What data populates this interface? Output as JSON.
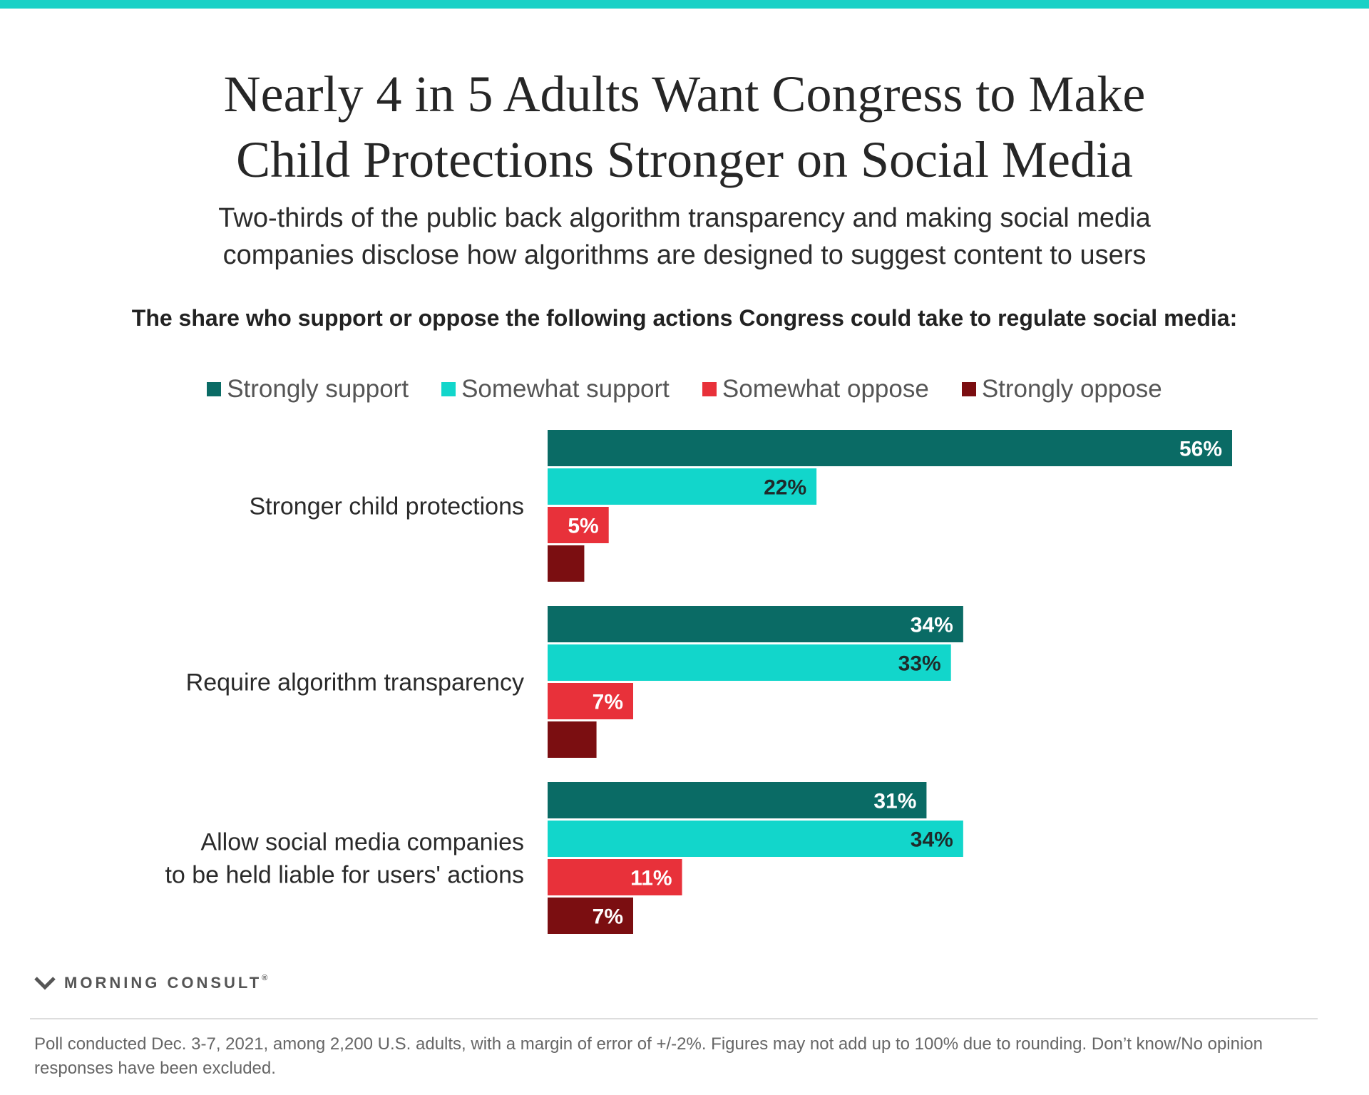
{
  "colors": {
    "top_bar": "#19d1c6",
    "strongly_support": "#0a6b65",
    "somewhat_support": "#12d6cb",
    "somewhat_oppose": "#e8313a",
    "strongly_oppose": "#7b0e11"
  },
  "header": {
    "title_line1": "Nearly 4 in 5 Adults Want Congress to Make",
    "title_line2": "Child Protections Stronger on Social Media",
    "subtitle_line1": "Two-thirds of the public back algorithm transparency and making social media",
    "subtitle_line2": "companies disclose how algorithms are designed to suggest content to users",
    "question": "The share who support or oppose the following actions Congress could take to regulate social media:"
  },
  "chart_data": {
    "type": "bar",
    "orientation": "horizontal",
    "unit": "%",
    "categories": [
      "Stronger child protections",
      "Require algorithm transparency",
      "Allow social media companies to be held liable for users' actions"
    ],
    "category_lines": [
      [
        "Stronger child protections"
      ],
      [
        "Require algorithm transparency"
      ],
      [
        "Allow social media companies",
        "to be held liable for users' actions"
      ]
    ],
    "series": [
      {
        "name": "Strongly support",
        "color": "#0a6b65",
        "label_color": "#ffffff",
        "values": [
          56,
          34,
          31
        ]
      },
      {
        "name": "Somewhat support",
        "color": "#12d6cb",
        "label_color": "#1f2a2a",
        "values": [
          22,
          33,
          34
        ]
      },
      {
        "name": "Somewhat oppose",
        "color": "#e8313a",
        "label_color": "#ffffff",
        "values": [
          5,
          7,
          11
        ]
      },
      {
        "name": "Strongly oppose",
        "color": "#7b0e11",
        "label_color": "#ffffff",
        "values": [
          3,
          4,
          7
        ]
      }
    ],
    "value_labels": [
      [
        "56%",
        "22%",
        "5%",
        ""
      ],
      [
        "34%",
        "33%",
        "7%",
        ""
      ],
      [
        "31%",
        "34%",
        "11%",
        "7%"
      ]
    ],
    "xlim": [
      0,
      56
    ],
    "legend_position": "top-center",
    "grid": false
  },
  "footer": {
    "logo_text": "MORNING CONSULT",
    "logo_mark": "®",
    "footnote": "Poll conducted Dec. 3-7, 2021, among 2,200 U.S. adults, with a margin of error of +/-2%. Figures may not add up to 100% due to rounding. Don’t know/No opinion responses have been excluded."
  }
}
